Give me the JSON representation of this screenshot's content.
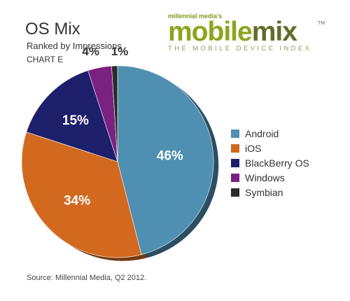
{
  "chart_data": {
    "type": "pie",
    "title": "OS Mix",
    "subtitle": "Ranked by Impressions",
    "chart_id": "CHART E",
    "labels": [
      "Android",
      "iOS",
      "BlackBerry OS",
      "Windows",
      "Symbian"
    ],
    "values": [
      46,
      34,
      15,
      4,
      1
    ],
    "value_labels": [
      "46%",
      "34%",
      "15%",
      "4%",
      "1%"
    ],
    "colors": [
      "#4e8fb2",
      "#d2691f",
      "#1e1f6b",
      "#7a2182",
      "#2b2b2b"
    ],
    "legend_position": "right",
    "source": "Source: Millennial Media, Q2 2012."
  },
  "logo": {
    "tagline": "millennial media's",
    "word_part1": "mobile",
    "word_part2": "mix",
    "trademark": "TM",
    "subline": "THE MOBILE DEVICE INDEX"
  }
}
